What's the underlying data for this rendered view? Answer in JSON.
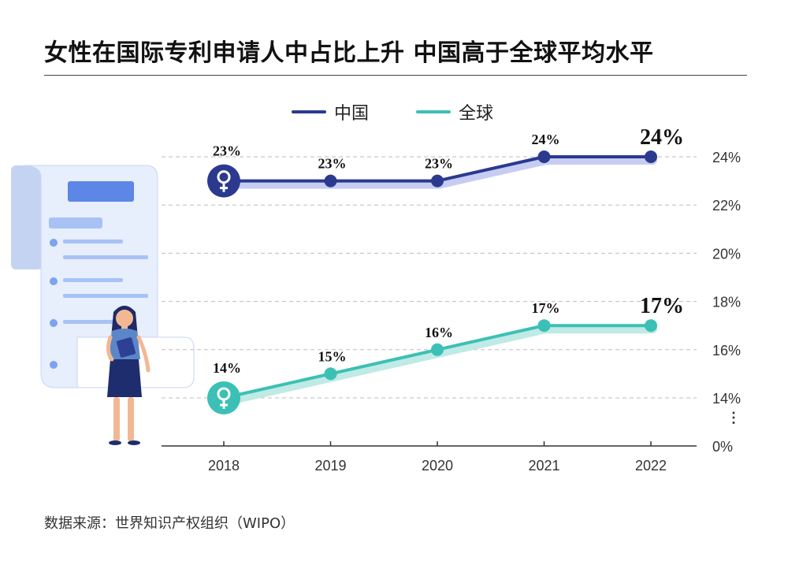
{
  "title": "女性在国际专利申请人中占比上升  中国高于全球平均水平",
  "source": "数据来源：世界知识产权组织（WIPO）",
  "colors": {
    "china": "#2b3a8f",
    "global": "#3cc0b5",
    "china_glow": "#c7cdf2",
    "global_glow": "#bfeae5"
  },
  "chart_data": {
    "type": "line",
    "x": [
      "2018",
      "2019",
      "2020",
      "2021",
      "2022"
    ],
    "series": [
      {
        "name": "中国",
        "values": [
          23,
          23,
          23,
          24,
          24
        ],
        "labels": [
          "23%",
          "23%",
          "23%",
          "24%",
          "24%"
        ]
      },
      {
        "name": "全球",
        "values": [
          14,
          15,
          16,
          17,
          17
        ],
        "labels": [
          "14%",
          "15%",
          "16%",
          "17%",
          "17%"
        ]
      }
    ],
    "y_ticks": [
      24,
      22,
      20,
      18,
      16,
      14,
      0
    ],
    "y_tick_labels": [
      "24%",
      "22%",
      "20%",
      "18%",
      "16%",
      "14%",
      "0%"
    ],
    "axis_break": "⋮",
    "ylim": [
      0,
      24
    ],
    "grid": true,
    "legend": "top-center"
  }
}
